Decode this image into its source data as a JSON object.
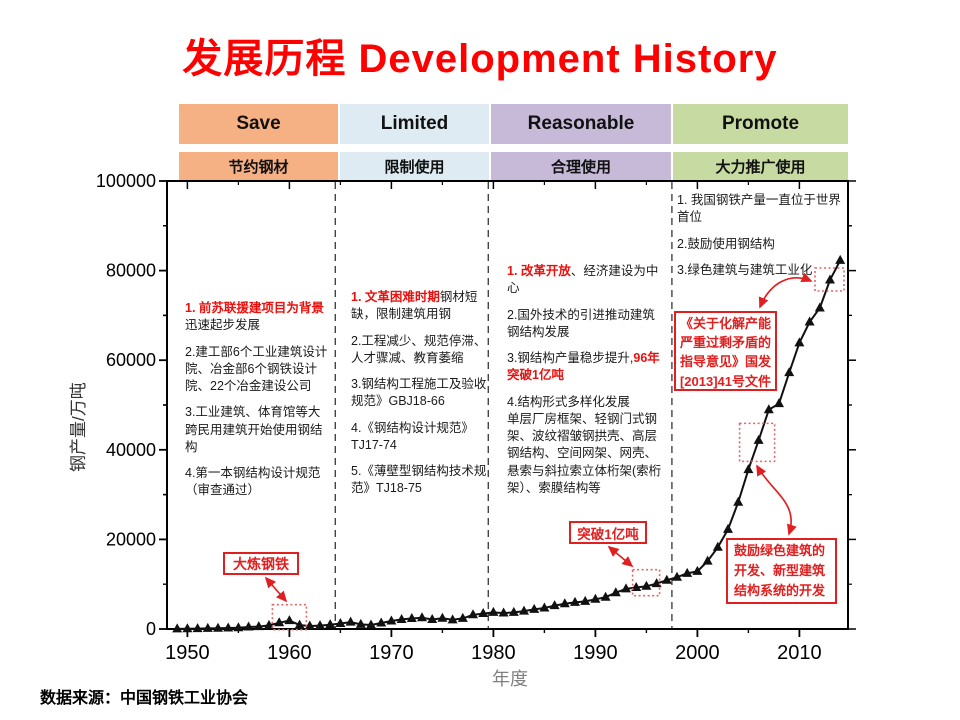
{
  "title": {
    "zh": "发展历程",
    "en": "Development History"
  },
  "source": "数据来源：中国钢铁工业协会",
  "periods": {
    "columns": [
      {
        "en": "Save",
        "zh": "节约钢材",
        "color": "#F5B183"
      },
      {
        "en": "Limited",
        "zh": "限制使用",
        "color": "#DEEBF2"
      },
      {
        "en": "Reasonable",
        "zh": "合理使用",
        "color": "#C6BAD8"
      },
      {
        "en": "Promote",
        "zh": "大力推广使用",
        "color": "#C7DAA2"
      }
    ]
  },
  "axis": {
    "y_title": "钢产量/万吨",
    "x_title": "年度",
    "y_ticks": [
      0,
      20000,
      40000,
      60000,
      80000,
      100000
    ],
    "x_ticks": [
      1950,
      1960,
      1970,
      1980,
      1990,
      2000,
      2010
    ]
  },
  "notes": {
    "col1": [
      [
        {
          "t": "1. 前苏联援建项目为背景",
          "red": true
        },
        {
          "t": "迅速起步发展",
          "red": false
        }
      ],
      [
        {
          "t": "2.建工部6个工业建筑设计院、冶金部6个钢铁设计院、22个冶金建设公司",
          "red": false
        }
      ],
      [
        {
          "t": "3.工业建筑、体育馆等大跨民用建筑开始使用钢结构",
          "red": false
        }
      ],
      [
        {
          "t": "4.第一本钢结构设计规范（审查通过）",
          "red": false
        }
      ]
    ],
    "col2": [
      [
        {
          "t": "1. 文革困难时期",
          "red": true
        },
        {
          "t": "钢材短缺，限制建筑用钢",
          "red": false
        }
      ],
      [
        {
          "t": "2.工程减少、规范停滞、人才骤减、教育萎缩",
          "red": false
        }
      ],
      [
        {
          "t": "3.钢结构工程施工及验收规范》GBJ18-66",
          "red": false
        }
      ],
      [
        {
          "t": "4.《钢结构设计规范》TJ17-74",
          "red": false
        }
      ],
      [
        {
          "t": "5.《薄壁型钢结构技术规范》TJ18-75",
          "red": false
        }
      ]
    ],
    "col3": [
      [
        {
          "t": "1. 改革开放",
          "red": true
        },
        {
          "t": "、经济建设为中心",
          "red": false
        }
      ],
      [
        {
          "t": "2.国外技术的引进推动建筑钢结构发展",
          "red": false
        }
      ],
      [
        {
          "t": "3.钢结构产量稳步提升,",
          "red": false
        },
        {
          "t": "96年突破1亿吨",
          "red": true
        }
      ],
      [
        {
          "t": "4.结构形式多样化发展\n单层厂房框架、轻钢门式钢架、波纹褶皱钢拱壳、高层钢结构、空间网架、网壳、悬索与斜拉索立体桁架(索桁架）、索膜结构等",
          "red": false
        }
      ]
    ],
    "col4": [
      [
        {
          "t": "1. 我国钢铁产量一直位于世界首位",
          "red": false
        }
      ],
      [
        {
          "t": "2.鼓励使用钢结构",
          "red": false
        }
      ],
      [
        {
          "t": "3.绿色建筑与建筑工业化",
          "red": false
        }
      ]
    ]
  },
  "callouts": {
    "great_leap": "大炼钢铁",
    "break_100m": "突破1亿吨",
    "policy_2013": "《关于化解产能严重过剩矛盾的指导意见》国发[2013]41号文件",
    "green_building": "鼓励绿色建筑的开发、新型建筑结构系统的开发"
  },
  "chart_data": {
    "type": "scatter",
    "marker": "triangle",
    "marker_color": "#111111",
    "xlabel": "年度",
    "ylabel": "钢产量/万吨",
    "xlim": [
      1948,
      2015
    ],
    "ylim": [
      0,
      100000
    ],
    "grid": false,
    "years": [
      1949,
      1950,
      1951,
      1952,
      1953,
      1954,
      1955,
      1956,
      1957,
      1958,
      1959,
      1960,
      1961,
      1962,
      1963,
      1964,
      1965,
      1966,
      1967,
      1968,
      1969,
      1970,
      1971,
      1972,
      1973,
      1974,
      1975,
      1976,
      1977,
      1978,
      1979,
      1980,
      1981,
      1982,
      1983,
      1984,
      1985,
      1986,
      1987,
      1988,
      1989,
      1990,
      1991,
      1992,
      1993,
      1994,
      1995,
      1996,
      1997,
      1998,
      1999,
      2000,
      2001,
      2002,
      2003,
      2004,
      2005,
      2006,
      2007,
      2008,
      2009,
      2010,
      2011,
      2012,
      2013,
      2014
    ],
    "series": [
      {
        "name": "钢产量",
        "values": [
          16,
          61,
          90,
          135,
          177,
          223,
          285,
          447,
          535,
          800,
          1387,
          1866,
          870,
          667,
          762,
          964,
          1223,
          1532,
          1029,
          904,
          1333,
          1779,
          2132,
          2338,
          2522,
          2112,
          2390,
          2046,
          2374,
          3178,
          3448,
          3712,
          3560,
          3716,
          4002,
          4384,
          4679,
          5221,
          5628,
          5943,
          6159,
          6635,
          7100,
          8094,
          8956,
          9261,
          9536,
          10124,
          10894,
          11559,
          12426,
          12850,
          15163,
          18237,
          22234,
          28291,
          35579,
          42102,
          48929,
          50306,
          57218,
          63874,
          68528,
          71654,
          77904,
          82270
        ]
      }
    ],
    "period_divider_years": [
      1964.5,
      1979.5,
      1997.5
    ],
    "highlight_years": [
      1960,
      1996,
      2006,
      2013
    ]
  }
}
